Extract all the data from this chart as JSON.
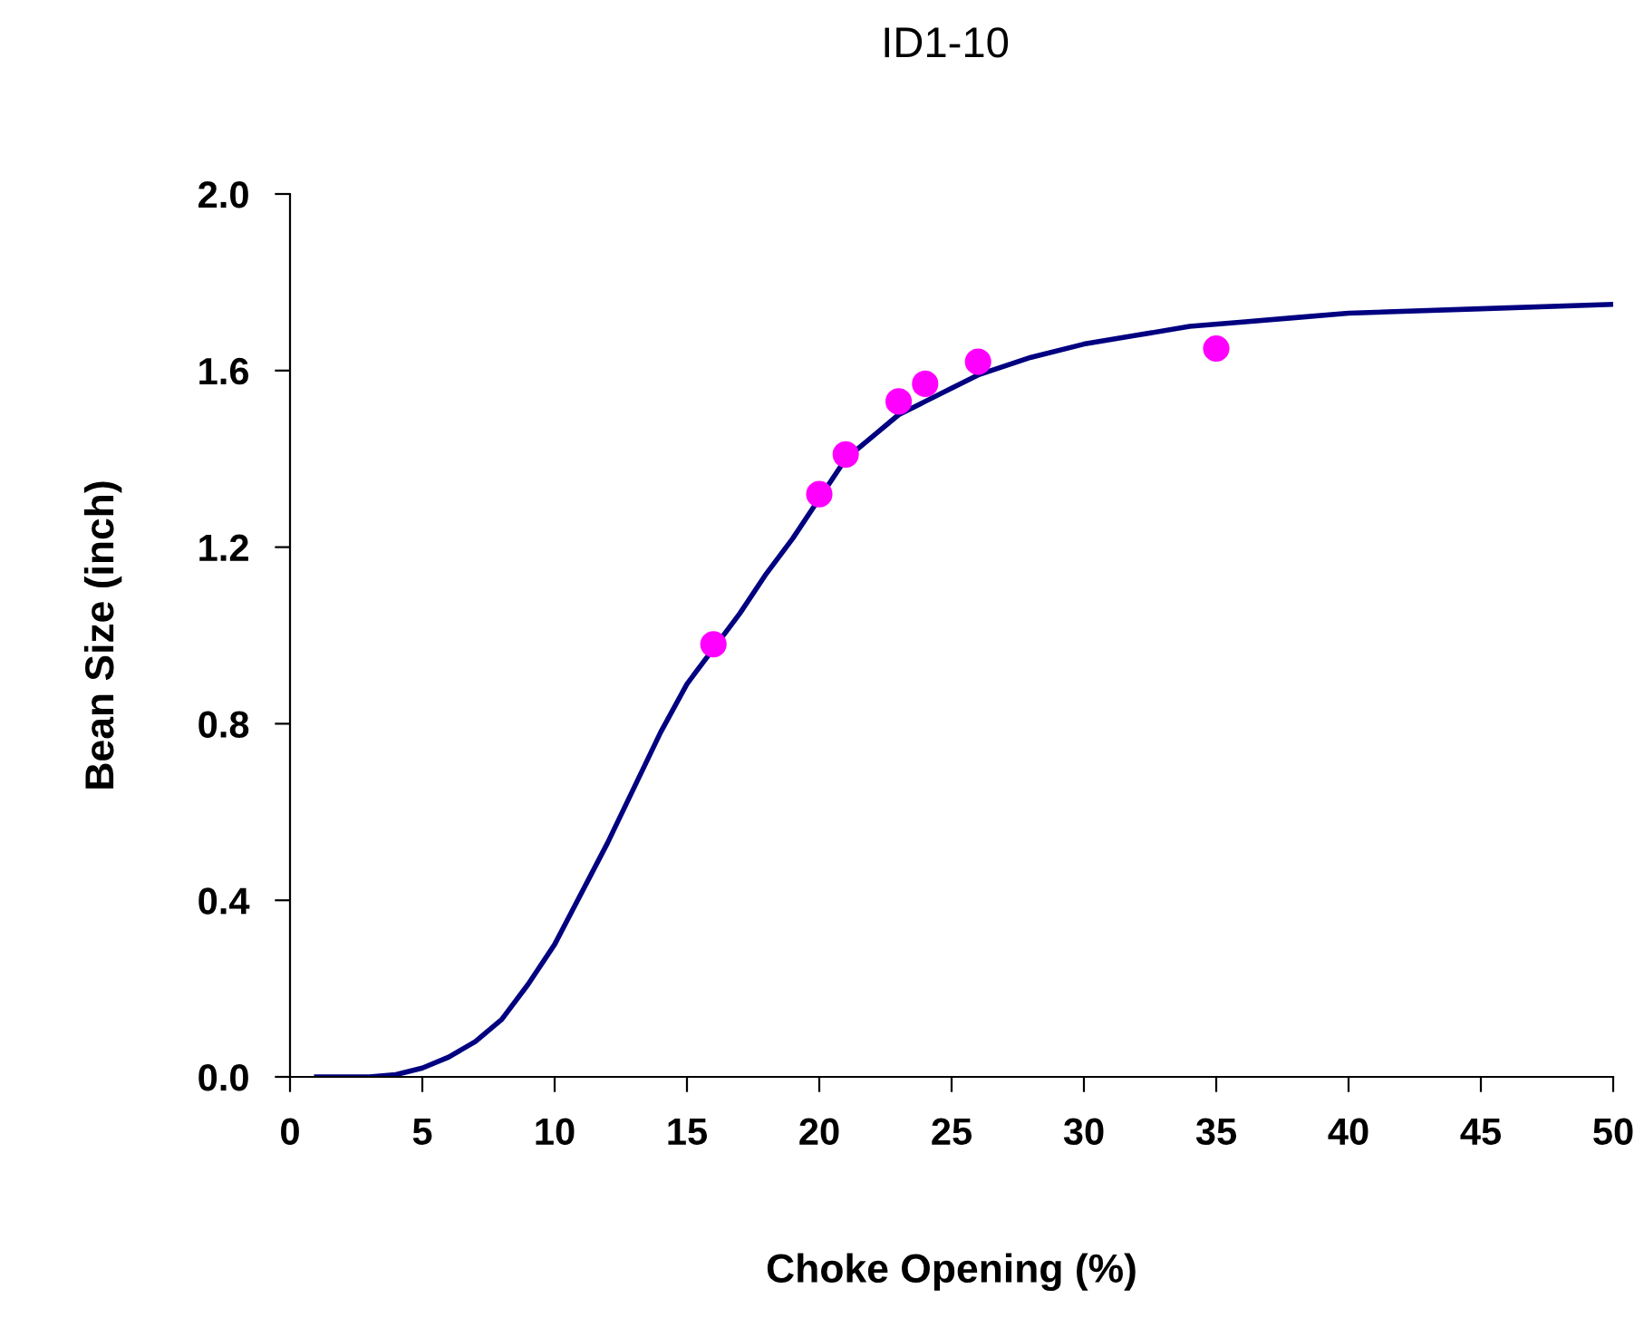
{
  "chart_data": {
    "type": "line",
    "title": "ID1-10",
    "xlabel": "Choke Opening (%)",
    "ylabel": "Bean Size (inch)",
    "xlim": [
      0,
      50
    ],
    "xticks": [
      0,
      5,
      10,
      15,
      20,
      25,
      30,
      35,
      40,
      45,
      50
    ],
    "ylim": [
      0,
      2.0
    ],
    "yticks": [
      {
        "value": 0,
        "label": "0.0"
      },
      {
        "value": 0.4,
        "label": "0.4"
      },
      {
        "value": 0.8,
        "label": "0.8"
      },
      {
        "value": 1.2,
        "label": "1.2"
      },
      {
        "value": 1.6,
        "label": "1.6"
      },
      {
        "value": 2.0,
        "label": "2.0"
      }
    ],
    "grid": false,
    "legend": false,
    "series": [
      {
        "color": "#000080",
        "marker": "none",
        "line_style": "solid",
        "x": [
          1,
          3,
          4,
          5,
          6,
          7,
          8,
          9,
          10,
          12,
          14,
          15,
          16,
          17,
          18,
          19,
          20,
          21,
          22,
          23,
          24,
          25,
          26,
          27,
          28,
          30,
          32,
          34,
          36,
          38,
          40,
          45,
          50
        ],
        "values": [
          0,
          0,
          0.005,
          0.02,
          0.045,
          0.08,
          0.13,
          0.21,
          0.3,
          0.53,
          0.78,
          0.89,
          0.97,
          1.05,
          1.14,
          1.22,
          1.31,
          1.4,
          1.45,
          1.5,
          1.53,
          1.56,
          1.59,
          1.61,
          1.63,
          1.66,
          1.68,
          1.7,
          1.71,
          1.72,
          1.73,
          1.74,
          1.75
        ]
      },
      {
        "type": "scatter",
        "color": "#ff00ff",
        "marker": "circle",
        "x": [
          16,
          20,
          21,
          23,
          24,
          26,
          35
        ],
        "values": [
          0.98,
          1.32,
          1.41,
          1.53,
          1.57,
          1.62,
          1.65
        ]
      }
    ]
  }
}
